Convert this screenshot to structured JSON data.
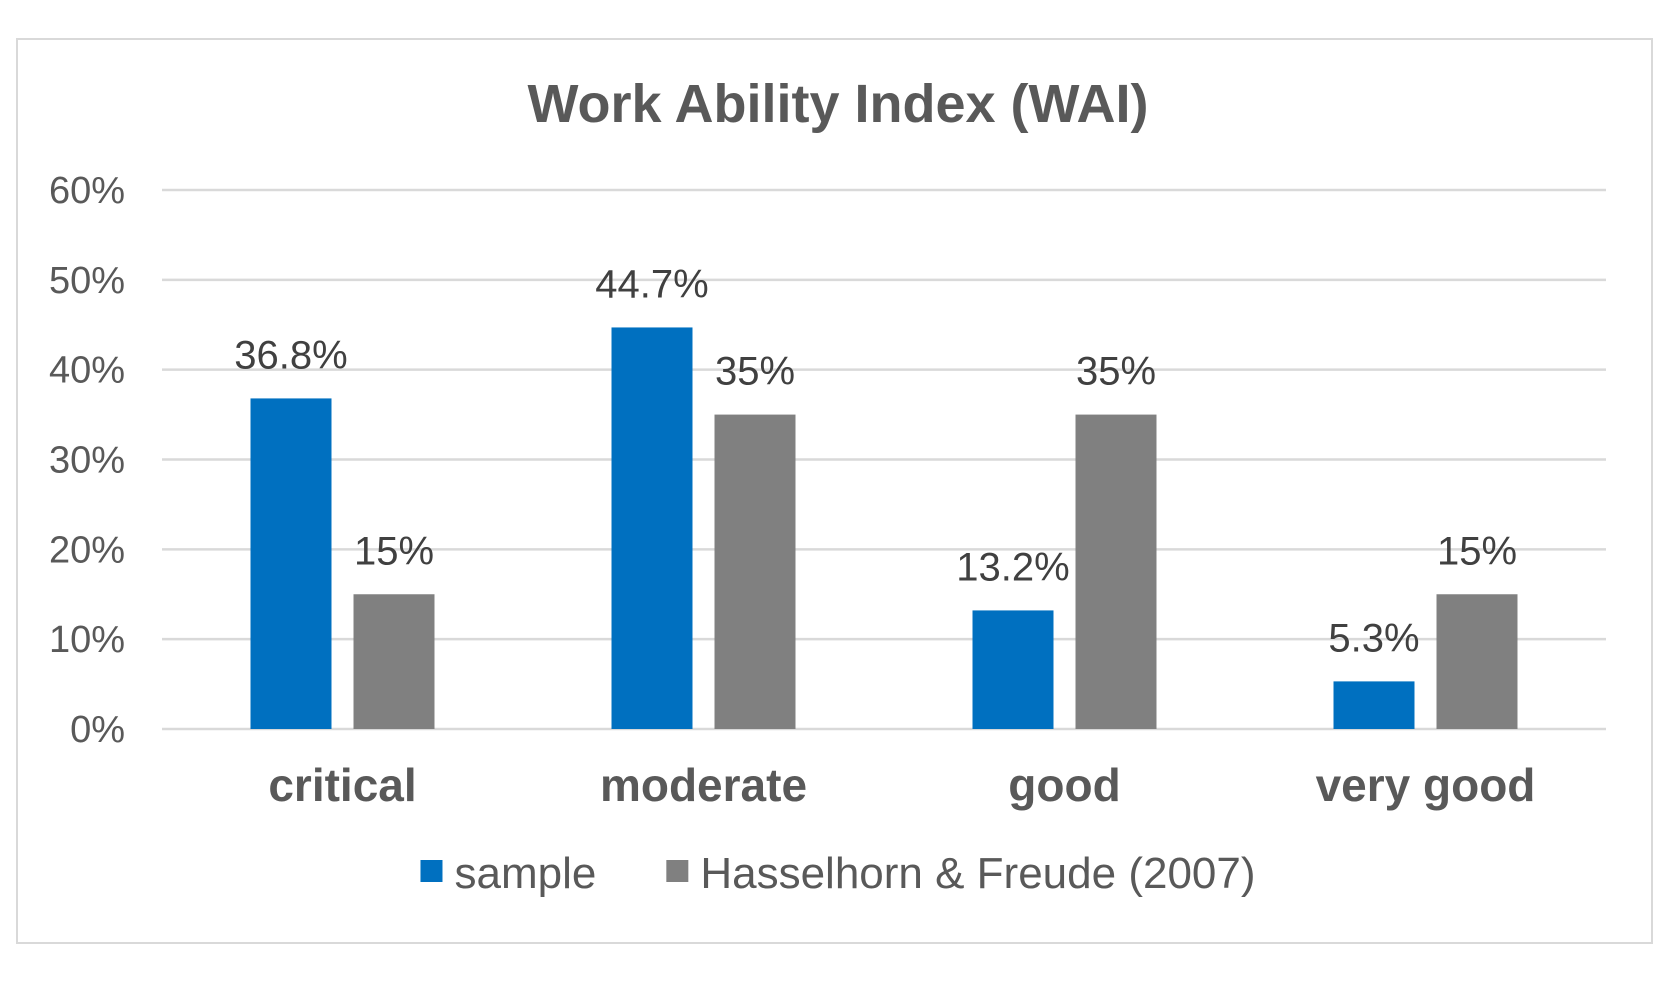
{
  "chart_data": {
    "type": "bar",
    "title": "Work Ability Index (WAI)",
    "xlabel": "",
    "ylabel": "",
    "categories": [
      "critical",
      "moderate",
      "good",
      "very good"
    ],
    "series": [
      {
        "name": "sample",
        "values": [
          36.8,
          44.7,
          13.2,
          5.3
        ],
        "labels": [
          "36.8%",
          "44.7%",
          "13.2%",
          "5.3%"
        ],
        "color": "#0070C0"
      },
      {
        "name": "Hasselhorn & Freude (2007)",
        "values": [
          15,
          35,
          35,
          15
        ],
        "labels": [
          "15%",
          "35%",
          "35%",
          "15%"
        ],
        "color": "#808080"
      }
    ],
    "ylim": [
      0,
      60
    ],
    "yticks": [
      0,
      10,
      20,
      30,
      40,
      50,
      60
    ],
    "ytick_labels": [
      "0%",
      "10%",
      "20%",
      "30%",
      "40%",
      "50%",
      "60%"
    ],
    "grid": true,
    "legend": "bottom"
  },
  "colors": {
    "gridline": "#d9d9d9",
    "text": "#595959",
    "frame": "#d9d9d9"
  }
}
